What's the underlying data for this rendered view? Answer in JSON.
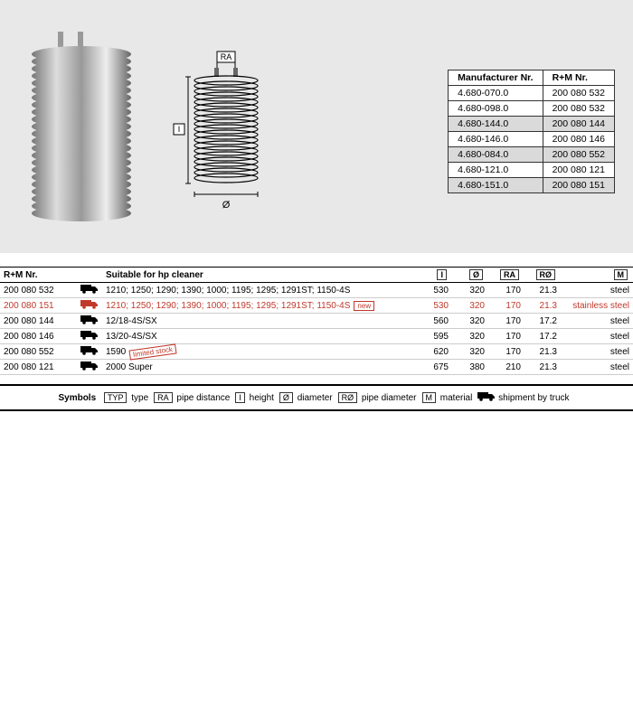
{
  "refTable": {
    "headers": [
      "Manufacturer Nr.",
      "R+M Nr."
    ],
    "rows": [
      [
        "4.680-070.0",
        "200 080 532"
      ],
      [
        "4.680-098.0",
        "200 080 532"
      ],
      [
        "4.680-144.0",
        "200 080 144"
      ],
      [
        "4.680-146.0",
        "200 080 146"
      ],
      [
        "4.680-084.0",
        "200 080 552"
      ],
      [
        "4.680-121.0",
        "200 080 121"
      ],
      [
        "4.680-151.0",
        "200 080 151"
      ]
    ],
    "altRows": [
      false,
      false,
      true,
      false,
      true,
      false,
      true
    ],
    "altColor": "#dadada"
  },
  "diagram": {
    "labels": {
      "ra": "RA",
      "i": "I",
      "dia": "Ø"
    }
  },
  "dataTable": {
    "headers": {
      "rmnr": "R+M Nr.",
      "suitable": "Suitable for hp cleaner",
      "i": "I",
      "dia": "Ø",
      "ra": "RA",
      "rdia": "RØ",
      "m": "M"
    },
    "rows": [
      {
        "rmnr": "200 080 532",
        "truck": true,
        "suitable": "1210; 1250; 1290; 1390; 1000; 1195; 1295; 1291ST; 1150-4S",
        "badge": "",
        "i": "530",
        "dia": "320",
        "ra": "170",
        "rdia": "21.3",
        "m": "steel",
        "hl": false
      },
      {
        "rmnr": "200 080 151",
        "truck": true,
        "suitable": "1210; 1250; 1290; 1390; 1000; 1195; 1295; 1291ST; 1150-4S",
        "badge": "new",
        "i": "530",
        "dia": "320",
        "ra": "170",
        "rdia": "21.3",
        "m": "stainless steel",
        "hl": true
      },
      {
        "rmnr": "200 080 144",
        "truck": true,
        "suitable": "12/18-4S/SX",
        "badge": "",
        "i": "560",
        "dia": "320",
        "ra": "170",
        "rdia": "17.2",
        "m": "steel",
        "hl": false
      },
      {
        "rmnr": "200 080 146",
        "truck": true,
        "suitable": "13/20-4S/SX",
        "badge": "",
        "i": "595",
        "dia": "320",
        "ra": "170",
        "rdia": "17.2",
        "m": "steel",
        "hl": false
      },
      {
        "rmnr": "200 080 552",
        "truck": true,
        "suitable": "1590",
        "badge": "limited stock",
        "i": "620",
        "dia": "320",
        "ra": "170",
        "rdia": "21.3",
        "m": "steel",
        "hl": false
      },
      {
        "rmnr": "200 080 121",
        "truck": true,
        "suitable": "2000 Super",
        "badge": "",
        "i": "675",
        "dia": "380",
        "ra": "210",
        "rdia": "21.3",
        "m": "steel",
        "hl": false
      }
    ]
  },
  "symbols": {
    "title": "Symbols",
    "items": [
      {
        "box": "TYP",
        "label": "type"
      },
      {
        "box": "RA",
        "label": "pipe distance"
      },
      {
        "box": "I",
        "label": "height"
      },
      {
        "box": "Ø",
        "label": "diameter"
      },
      {
        "box": "RØ",
        "label": "pipe diameter"
      },
      {
        "box": "M",
        "label": "material"
      },
      {
        "box": "truck",
        "label": "shipment by truck"
      }
    ]
  },
  "colors": {
    "bgGrey": "#e8e8e8",
    "highlight": "#c0392b",
    "coilLight": "#cccccc",
    "coilDark": "#888888"
  }
}
